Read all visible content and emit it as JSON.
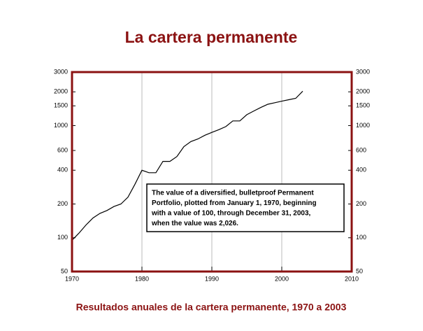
{
  "chart_data": {
    "type": "line",
    "title": "La cartera permanente",
    "caption": "Resultados anuales de la cartera permanente, 1970 a 2003",
    "annotation": [
      "The value of a diversified, bulletproof Permanent",
      "Portfolio, plotted from January 1, 1970, beginning",
      "with a value of 100, through December 31, 2003,",
      "when the value was 2,026."
    ],
    "x": [
      1970,
      1971,
      1972,
      1973,
      1974,
      1975,
      1976,
      1977,
      1978,
      1979,
      1980,
      1981,
      1982,
      1983,
      1984,
      1985,
      1986,
      1987,
      1988,
      1989,
      1990,
      1991,
      1992,
      1993,
      1994,
      1995,
      1996,
      1997,
      1998,
      1999,
      2000,
      2001,
      2002,
      2003
    ],
    "values": [
      95,
      110,
      130,
      150,
      165,
      175,
      190,
      200,
      230,
      300,
      400,
      380,
      380,
      480,
      480,
      530,
      650,
      720,
      760,
      820,
      870,
      920,
      980,
      1100,
      1100,
      1250,
      1350,
      1450,
      1550,
      1600,
      1650,
      1700,
      1750,
      2026
    ],
    "color": "#000000",
    "xlim": [
      1970,
      2010
    ],
    "xticks": [
      1970,
      1980,
      1990,
      2000,
      2010
    ],
    "ylim": [
      50,
      3000
    ],
    "yticks": [
      50,
      100,
      200,
      400,
      600,
      1000,
      1500,
      2000,
      3000
    ],
    "log_y": true,
    "grid": "x",
    "frame_color": "#8b1212"
  }
}
